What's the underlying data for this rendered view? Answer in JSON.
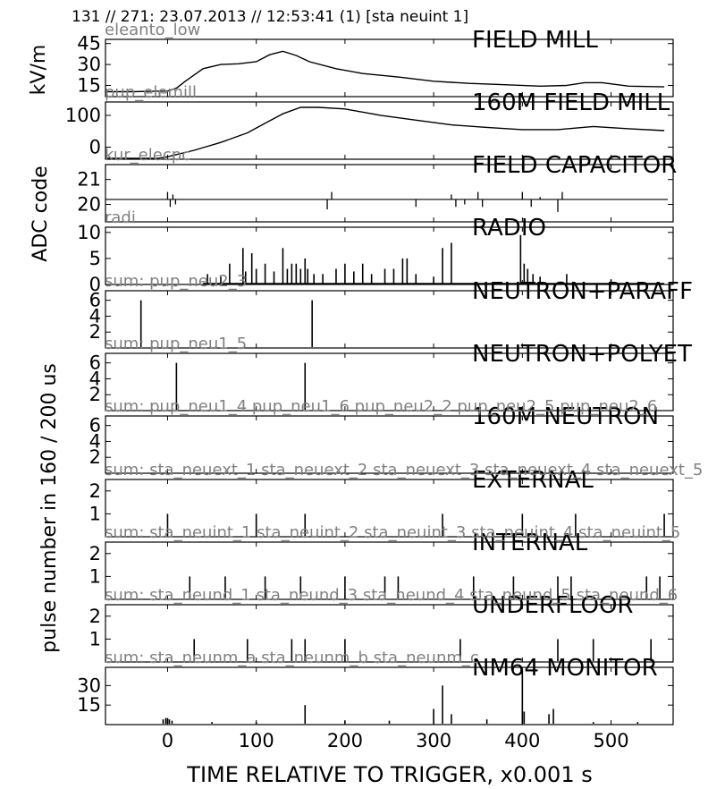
{
  "header": "131 // 271:   23.07.2013 // 12:53:41 (1)  [sta neuint 1]",
  "xlabel": "TIME RELATIVE TO TRIGGER,   x0.001 s",
  "ylabel_top": "kV/m",
  "ylabel_adc": "ADC code",
  "ylabel_pulse": "pulse number in 160 / 200 us",
  "xaxis": {
    "range": [
      -70,
      570
    ],
    "ticks": [
      0,
      100,
      200,
      300,
      400,
      500
    ],
    "tick_labels": [
      "0",
      "100",
      "200",
      "300",
      "400",
      "500"
    ]
  },
  "chart_data": [
    {
      "type": "line",
      "title": "FIELD MILL",
      "subtitle": "eleanto_low",
      "ylim": [
        7,
        48
      ],
      "yticks": [
        15,
        30,
        45
      ],
      "ytick_labels": [
        "15",
        "30",
        "45"
      ],
      "x": [
        -70,
        -40,
        -20,
        0,
        10,
        20,
        40,
        60,
        80,
        100,
        115,
        130,
        145,
        160,
        190,
        220,
        260,
        300,
        340,
        380,
        420,
        450,
        470,
        490,
        520,
        560
      ],
      "y": [
        10.5,
        10.5,
        10.8,
        11,
        13,
        18,
        27,
        30,
        30.5,
        32,
        37,
        39.5,
        36.5,
        32,
        27,
        23.5,
        21,
        18,
        16.5,
        15.5,
        14.5,
        15,
        17,
        17,
        14.5,
        14
      ]
    },
    {
      "type": "line",
      "title": "160M FIELD MILL",
      "subtitle": "pup_elemill",
      "ylim": [
        -38,
        142
      ],
      "yticks": [
        0,
        100
      ],
      "ytick_labels": [
        "0",
        "100"
      ],
      "x": [
        -70,
        -10,
        0,
        30,
        60,
        90,
        110,
        130,
        150,
        170,
        200,
        240,
        280,
        320,
        360,
        400,
        440,
        480,
        520,
        560
      ],
      "y": [
        -35,
        -35,
        -30,
        -10,
        15,
        45,
        75,
        105,
        125,
        125,
        120,
        100,
        85,
        70,
        62,
        55,
        55,
        65,
        58,
        52
      ]
    },
    {
      "type": "line",
      "title": "FIELD CAPACITOR",
      "subtitle": "kur_elecpc",
      "ylim": [
        19.3,
        21.6
      ],
      "yticks": [
        20,
        21
      ],
      "ytick_labels": [
        "20",
        "21"
      ],
      "baseline": 20.2,
      "spikes": [
        [
          0,
          20.5
        ],
        [
          3,
          19.9
        ],
        [
          6,
          20.4
        ],
        [
          9,
          20.0
        ],
        [
          180,
          19.8
        ],
        [
          185,
          20.5
        ],
        [
          280,
          19.9
        ],
        [
          320,
          20.4
        ],
        [
          325,
          19.9
        ],
        [
          335,
          20.0
        ],
        [
          350,
          20.5
        ],
        [
          355,
          19.9
        ],
        [
          400,
          20.5
        ],
        [
          410,
          19.9
        ],
        [
          420,
          20.3
        ],
        [
          440,
          19.7
        ],
        [
          445,
          20.5
        ]
      ]
    },
    {
      "type": "bar",
      "title": "RADIO",
      "subtitle": "radi",
      "ylim": [
        0,
        11
      ],
      "yticks": [
        0,
        5,
        10
      ],
      "ytick_labels": [
        "0",
        "5",
        "10"
      ],
      "x": [
        45,
        60,
        70,
        85,
        88,
        95,
        100,
        110,
        120,
        130,
        135,
        140,
        145,
        150,
        155,
        158,
        165,
        175,
        190,
        200,
        210,
        220,
        230,
        245,
        255,
        265,
        270,
        280,
        300,
        310,
        320,
        398,
        402,
        406,
        412,
        420,
        450,
        500
      ],
      "values": [
        2,
        1.5,
        4,
        7,
        2.5,
        6,
        3,
        4,
        2.5,
        7,
        3,
        4,
        4,
        3,
        5,
        3,
        2,
        2,
        3,
        4,
        2.5,
        4,
        2,
        3,
        3,
        5,
        5,
        2,
        1.5,
        7,
        8,
        9.5,
        4,
        3,
        2,
        1.5,
        2,
        1
      ]
    },
    {
      "type": "bar",
      "title": "NEUTRON+PARAFF",
      "subtitle": "sum: pup_neu2_3",
      "ylim": [
        0,
        7.2
      ],
      "yticks": [
        2,
        4,
        6
      ],
      "ytick_labels": [
        "2",
        "4",
        "6"
      ],
      "x": [
        -30,
        163
      ],
      "values": [
        6,
        6
      ]
    },
    {
      "type": "bar",
      "title": "NEUTRON+POLYET",
      "subtitle": "sum: pup_neu1_5",
      "ylim": [
        0,
        7.2
      ],
      "yticks": [
        2,
        4,
        6
      ],
      "ytick_labels": [
        "2",
        "4",
        "6"
      ],
      "x": [
        10,
        155
      ],
      "values": [
        6,
        6
      ]
    },
    {
      "type": "bar",
      "title": "160M NEUTRON",
      "subtitle": "sum: pup_neu1_4 pup_neu1_6 pup_neu2_2 pup_neu2_5 pup_neu2_6",
      "ylim": [
        0,
        7.2
      ],
      "yticks": [
        2,
        4,
        6
      ],
      "ytick_labels": [
        "2",
        "4",
        "6"
      ],
      "x": [],
      "values": []
    },
    {
      "type": "bar",
      "title": "EXTERNAL",
      "subtitle": "sum: sta_neuext_1 sta_neuext_2 sta_neuext_3 sta_neuext_4 sta_neuext_5",
      "ylim": [
        0,
        2.5
      ],
      "yticks": [
        1,
        2
      ],
      "ytick_labels": [
        "1",
        "2"
      ],
      "x": [
        0,
        100,
        155,
        310,
        400,
        460,
        560
      ],
      "values": [
        1,
        1,
        1,
        1,
        1,
        1,
        1
      ]
    },
    {
      "type": "bar",
      "title": "INTERNAL",
      "subtitle": "sum: sta_neuint_1 sta_neuint_2 sta_neuint_3 sta_neuint_4 sta_neuint_5",
      "ylim": [
        0,
        2.5
      ],
      "yticks": [
        1,
        2
      ],
      "ytick_labels": [
        "1",
        "2"
      ],
      "x": [
        25,
        65,
        110,
        150,
        200,
        245,
        260,
        345,
        390,
        440,
        455,
        540,
        555
      ],
      "values": [
        1,
        1,
        1,
        1,
        1,
        1,
        1,
        1,
        1,
        1,
        1,
        1,
        1
      ]
    },
    {
      "type": "bar",
      "title": "UNDERFLOOR",
      "subtitle": "sum: sta_neund_1 sta_neund_3 sta_neund_4 sta_neund_5 sta_neund_6",
      "ylim": [
        0,
        2.5
      ],
      "yticks": [
        1,
        2
      ],
      "ytick_labels": [
        "1",
        "2"
      ],
      "x": [
        30,
        90,
        140,
        155,
        200,
        330,
        440,
        480,
        545
      ],
      "values": [
        1,
        1,
        1,
        1,
        1,
        1,
        1,
        1,
        1
      ]
    },
    {
      "type": "bar",
      "title": "NM64 MONITOR",
      "subtitle": "sum: sta_neunm_a sta_neunm_b sta_neunm_c",
      "ylim": [
        0,
        44
      ],
      "yticks": [
        15,
        30
      ],
      "ytick_labels": [
        "15",
        "30"
      ],
      "x": [
        -5,
        -2,
        0,
        2,
        5,
        155,
        300,
        310,
        320,
        400,
        402,
        430,
        435,
        360,
        250,
        100,
        50,
        200,
        480,
        530
      ],
      "values": [
        4,
        5,
        5,
        4,
        3,
        15,
        12,
        30,
        8,
        42,
        10,
        8,
        12,
        4,
        3,
        2,
        2,
        3,
        2,
        2
      ]
    }
  ]
}
